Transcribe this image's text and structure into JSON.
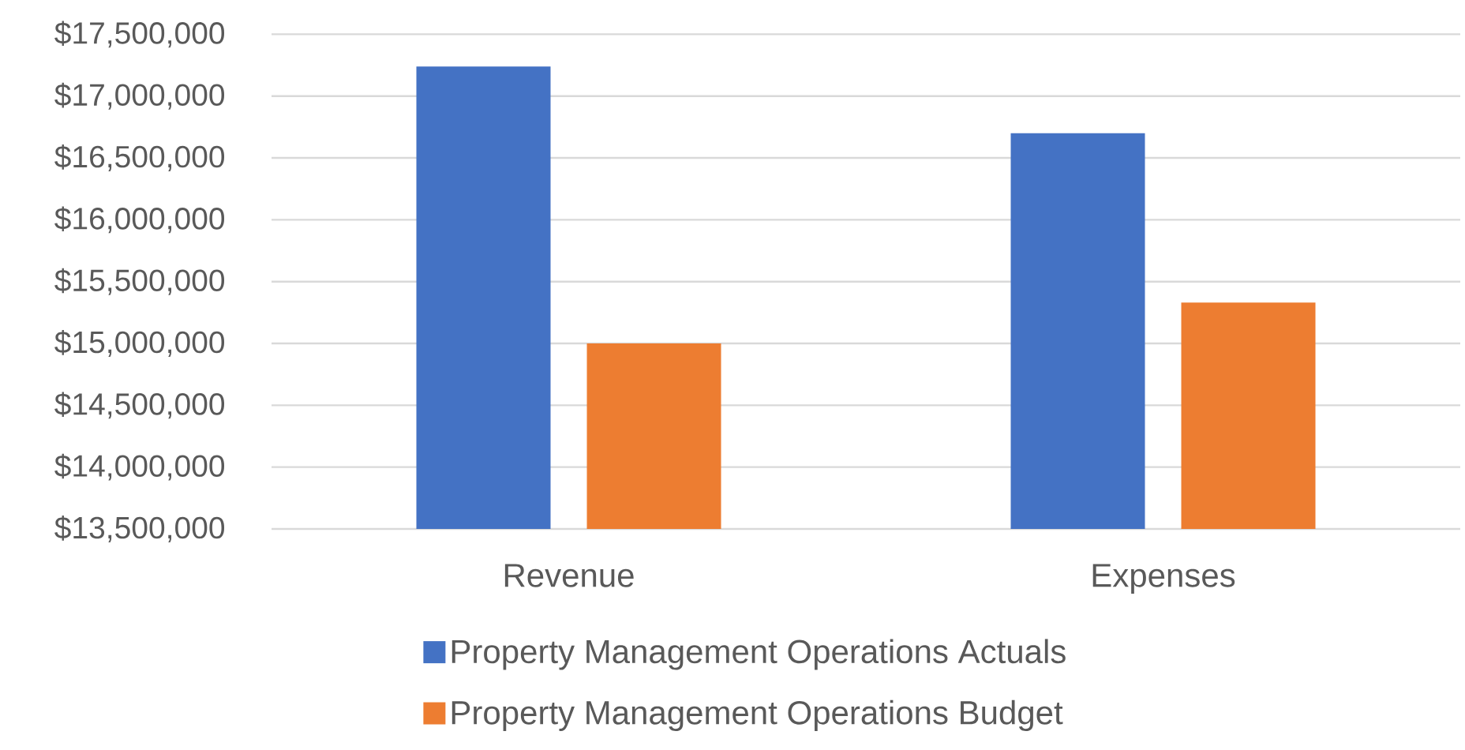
{
  "chart_data": {
    "type": "bar",
    "categories": [
      "Revenue",
      "Expenses"
    ],
    "series": [
      {
        "name": "Property Management Operations Actuals",
        "color": "#4472c4",
        "values": [
          17240000,
          16700000
        ]
      },
      {
        "name": "Property Management Operations Budget",
        "color": "#ed7d31",
        "values": [
          15000000,
          15330000
        ]
      }
    ],
    "ylim": [
      13500000,
      17500000
    ],
    "yticks": [
      {
        "value": 13500000,
        "label": "$13,500,000"
      },
      {
        "value": 14000000,
        "label": "$14,000,000"
      },
      {
        "value": 14500000,
        "label": "$14,500,000"
      },
      {
        "value": 15000000,
        "label": "$15,000,000"
      },
      {
        "value": 15500000,
        "label": "$15,500,000"
      },
      {
        "value": 16000000,
        "label": "$16,000,000"
      },
      {
        "value": 16500000,
        "label": "$16,500,000"
      },
      {
        "value": 17000000,
        "label": "$17,000,000"
      },
      {
        "value": 17500000,
        "label": "$17,500,000"
      }
    ],
    "grid": "y",
    "legend": "bottom"
  }
}
